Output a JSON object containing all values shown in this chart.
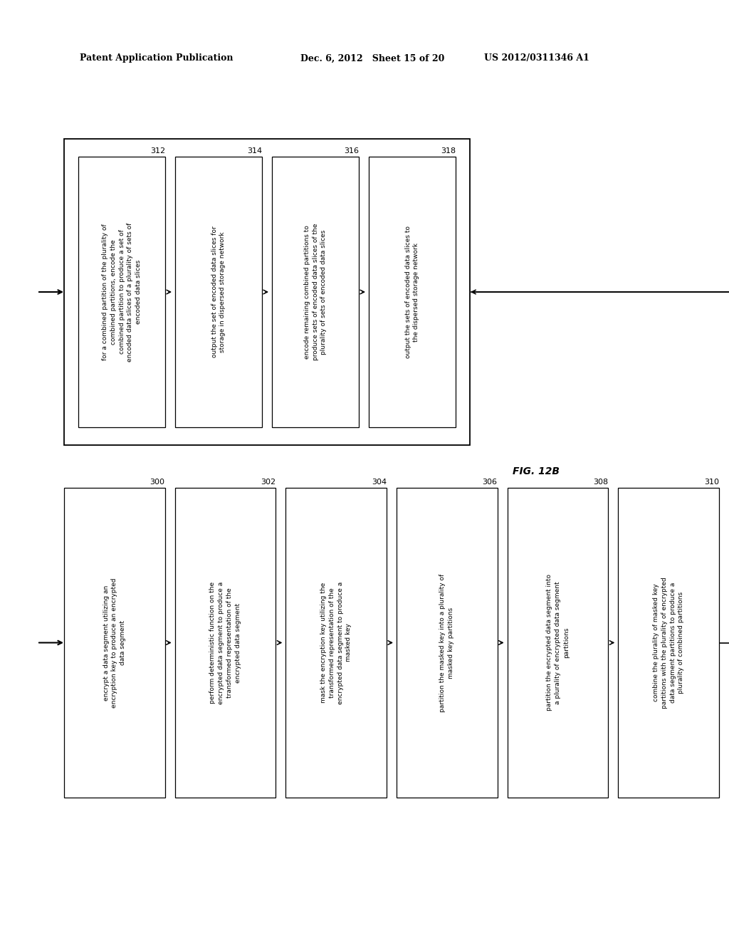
{
  "bg_color": "#ffffff",
  "header_left": "Patent Application Publication",
  "header_mid": "Dec. 6, 2012   Sheet 15 of 20",
  "header_right": "US 2012/0311346 A1",
  "fig_label": "FIG. 12B",
  "top_flow": {
    "boxes": [
      {
        "id": "312",
        "label": "for a combined partition of the plurality of\ncombined partitions, encode the\ncombined partition to produce a set of\nencoded data slices of a plurality of sets of\nencoded data slices"
      },
      {
        "id": "314",
        "label": "output the set of encoded data slices for\nstorage in dispersed storage network"
      },
      {
        "id": "316",
        "label": "encode remaining combined partitions to\nproduce sets of encoded data slices of the\nplurality of sets of encoded data slices"
      },
      {
        "id": "318",
        "label": "output the sets of encoded data slices to\nthe dispersed storage network"
      }
    ]
  },
  "bottom_flow": {
    "boxes": [
      {
        "id": "300",
        "label": "encrypt a data segment utilizing an\nencryption key to produce an encrypted\ndata segment"
      },
      {
        "id": "302",
        "label": "perform deterministic function on the\nencrypted data segment to produce a\ntransformed representation of the\nencrypted data segment"
      },
      {
        "id": "304",
        "label": "mask the encryption key utilizing the\ntransformed representation of the\nencrypted data segment to produce a\nmasked key"
      },
      {
        "id": "306",
        "label": "partition the masked key into a plurality of\nmasked key partitions"
      },
      {
        "id": "308",
        "label": "partition the encrypted data segment into\na plurality of encrypted data segment\npartitions"
      },
      {
        "id": "310",
        "label": "combine the plurality of masked key\npartitions with the plurality of encrypted\ndata segment partitions to produce a\nplurality of combined partitions"
      }
    ]
  }
}
